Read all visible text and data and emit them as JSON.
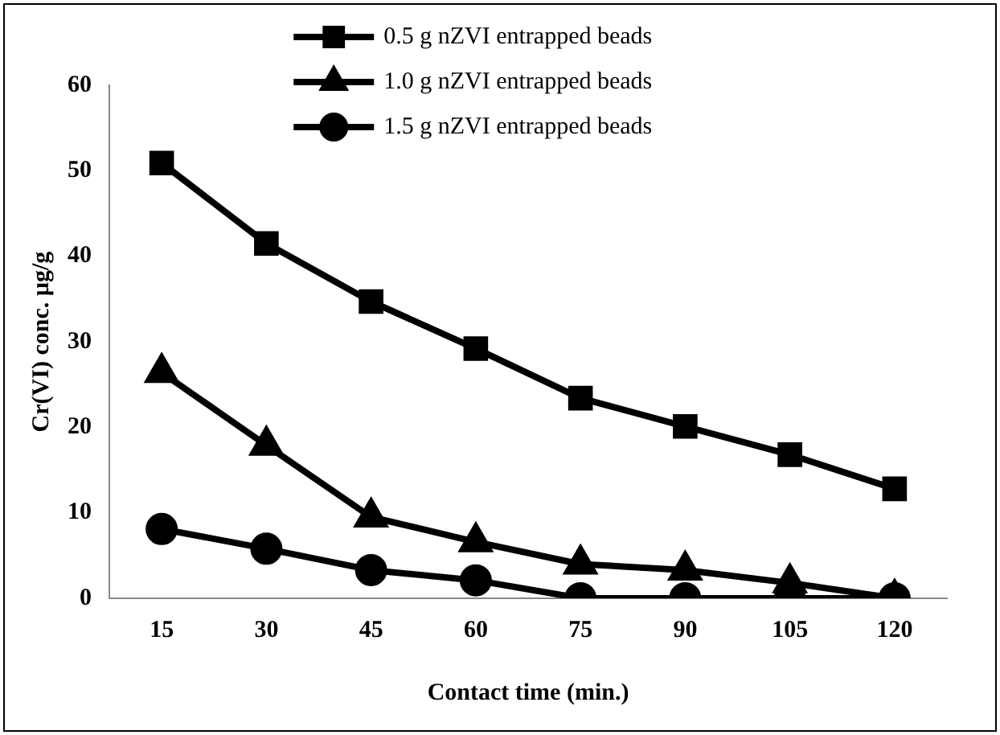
{
  "chart_data": {
    "type": "line",
    "xlabel": "Contact time (min.)",
    "ylabel": "Cr(VI) conc. µg/g",
    "categories": [
      "15",
      "30",
      "45",
      "60",
      "75",
      "90",
      "105",
      "120"
    ],
    "series": [
      {
        "name": "0.5 g nZVI entrapped beads",
        "color": "#000000",
        "marker": "square",
        "values": [
          50.9,
          41.5,
          34.7,
          29.2,
          23.4,
          20.1,
          16.8,
          12.8
        ]
      },
      {
        "name": "1.0 g nZVI entrapped beads",
        "color": "#000000",
        "marker": "triangle",
        "values": [
          26.4,
          17.9,
          9.5,
          6.6,
          4,
          3.3,
          1.8,
          0
        ]
      },
      {
        "name": "1.5 g nZVI entrapped beads",
        "color": "#000000",
        "marker": "circle",
        "values": [
          8.1,
          5.8,
          3.3,
          2.1,
          0,
          0,
          0,
          0
        ]
      }
    ],
    "ylim": [
      0,
      60
    ],
    "yticks": [
      0,
      10,
      20,
      30,
      40,
      50,
      60
    ],
    "grid": false,
    "legend": "top",
    "line_style": "solid"
  }
}
